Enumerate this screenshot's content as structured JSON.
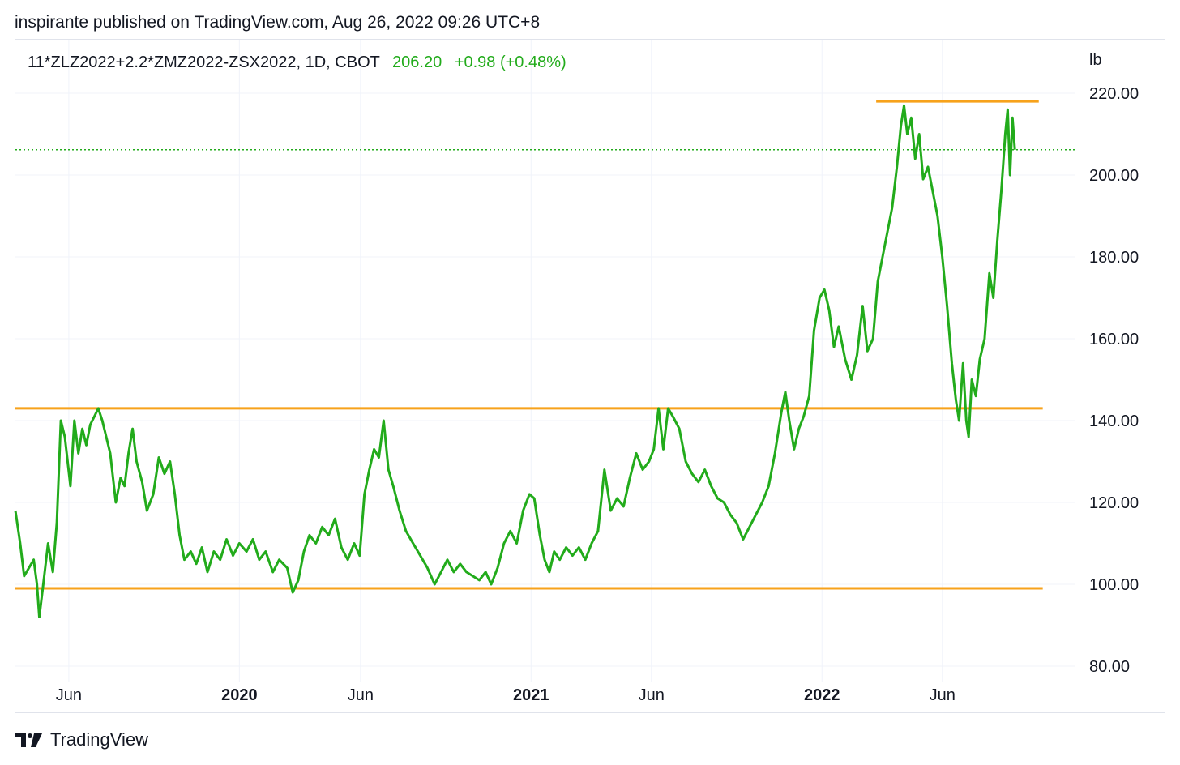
{
  "header": {
    "publisher_text": "inspirante published on TradingView.com, Aug 26, 2022 09:26 UTC+8"
  },
  "legend": {
    "symbol": "11*ZLZ2022+2.2*ZMZ2022-ZSX2022, 1D, CBOT",
    "last": "206.20",
    "change": "+0.98 (+0.48%)",
    "color": "#22ab1b"
  },
  "footer": {
    "brand": "TradingView",
    "logo_icon": "tradingview-logo-icon"
  },
  "chart_data": {
    "type": "line",
    "unit_label": "lb",
    "ylim": [
      80,
      220
    ],
    "yticks": [
      "220.00",
      "200.00",
      "180.00",
      "160.00",
      "140.00",
      "120.00",
      "100.00",
      "80.00"
    ],
    "xlim": [
      "2019-03-26",
      "2022-11-14"
    ],
    "xticks": [
      {
        "label": "Jun",
        "date": "2019-06-01",
        "bold": false
      },
      {
        "label": "2020",
        "date": "2020-01-01",
        "bold": true
      },
      {
        "label": "Jun",
        "date": "2020-06-01",
        "bold": false
      },
      {
        "label": "2021",
        "date": "2021-01-01",
        "bold": true
      },
      {
        "label": "Jun",
        "date": "2021-06-01",
        "bold": false
      },
      {
        "label": "2022",
        "date": "2022-01-01",
        "bold": true
      },
      {
        "label": "Jun",
        "date": "2022-06-01",
        "bold": false
      }
    ],
    "grid": true,
    "line_color": "#22ab1b",
    "last_price_line": 206.2,
    "horizontal_lines": [
      {
        "value": 218.0,
        "from": "2022-03-10",
        "to": "2022-09-30",
        "color": "#f7a21b"
      },
      {
        "value": 143.0,
        "from": "2019-03-26",
        "to": "2022-10-05",
        "color": "#f7a21b"
      },
      {
        "value": 99.0,
        "from": "2019-03-26",
        "to": "2022-10-05",
        "color": "#f7a21b"
      }
    ],
    "series": [
      {
        "values": [
          [
            "2019-03-26",
            118
          ],
          [
            "2019-04-01",
            110
          ],
          [
            "2019-04-06",
            102
          ],
          [
            "2019-04-12",
            104
          ],
          [
            "2019-04-18",
            106
          ],
          [
            "2019-04-22",
            100
          ],
          [
            "2019-04-25",
            92
          ],
          [
            "2019-04-30",
            100
          ],
          [
            "2019-05-06",
            110
          ],
          [
            "2019-05-12",
            103
          ],
          [
            "2019-05-17",
            115
          ],
          [
            "2019-05-22",
            140
          ],
          [
            "2019-05-27",
            136
          ],
          [
            "2019-06-03",
            124
          ],
          [
            "2019-06-08",
            140
          ],
          [
            "2019-06-13",
            132
          ],
          [
            "2019-06-18",
            138
          ],
          [
            "2019-06-23",
            134
          ],
          [
            "2019-06-28",
            139
          ],
          [
            "2019-07-03",
            141
          ],
          [
            "2019-07-08",
            143
          ],
          [
            "2019-07-13",
            140
          ],
          [
            "2019-07-18",
            136
          ],
          [
            "2019-07-23",
            132
          ],
          [
            "2019-07-30",
            120
          ],
          [
            "2019-08-05",
            126
          ],
          [
            "2019-08-10",
            124
          ],
          [
            "2019-08-15",
            132
          ],
          [
            "2019-08-20",
            138
          ],
          [
            "2019-08-25",
            130
          ],
          [
            "2019-09-01",
            125
          ],
          [
            "2019-09-07",
            118
          ],
          [
            "2019-09-15",
            122
          ],
          [
            "2019-09-22",
            131
          ],
          [
            "2019-09-29",
            127
          ],
          [
            "2019-10-06",
            130
          ],
          [
            "2019-10-12",
            122
          ],
          [
            "2019-10-18",
            112
          ],
          [
            "2019-10-24",
            106
          ],
          [
            "2019-11-01",
            108
          ],
          [
            "2019-11-08",
            105
          ],
          [
            "2019-11-15",
            109
          ],
          [
            "2019-11-22",
            103
          ],
          [
            "2019-11-30",
            108
          ],
          [
            "2019-12-08",
            106
          ],
          [
            "2019-12-16",
            111
          ],
          [
            "2019-12-24",
            107
          ],
          [
            "2020-01-01",
            110
          ],
          [
            "2020-01-10",
            108
          ],
          [
            "2020-01-18",
            111
          ],
          [
            "2020-01-26",
            106
          ],
          [
            "2020-02-03",
            108
          ],
          [
            "2020-02-12",
            103
          ],
          [
            "2020-02-20",
            106
          ],
          [
            "2020-03-01",
            104
          ],
          [
            "2020-03-08",
            98
          ],
          [
            "2020-03-15",
            101
          ],
          [
            "2020-03-22",
            108
          ],
          [
            "2020-03-29",
            112
          ],
          [
            "2020-04-06",
            110
          ],
          [
            "2020-04-14",
            114
          ],
          [
            "2020-04-22",
            112
          ],
          [
            "2020-04-30",
            116
          ],
          [
            "2020-05-08",
            109
          ],
          [
            "2020-05-16",
            106
          ],
          [
            "2020-05-24",
            110
          ],
          [
            "2020-05-31",
            107
          ],
          [
            "2020-06-06",
            122
          ],
          [
            "2020-06-12",
            128
          ],
          [
            "2020-06-18",
            133
          ],
          [
            "2020-06-24",
            131
          ],
          [
            "2020-06-30",
            140
          ],
          [
            "2020-07-06",
            128
          ],
          [
            "2020-07-12",
            124
          ],
          [
            "2020-07-20",
            118
          ],
          [
            "2020-07-28",
            113
          ],
          [
            "2020-08-06",
            110
          ],
          [
            "2020-08-15",
            107
          ],
          [
            "2020-08-24",
            104
          ],
          [
            "2020-09-02",
            100
          ],
          [
            "2020-09-10",
            103
          ],
          [
            "2020-09-18",
            106
          ],
          [
            "2020-09-26",
            103
          ],
          [
            "2020-10-04",
            105
          ],
          [
            "2020-10-12",
            103
          ],
          [
            "2020-10-20",
            102
          ],
          [
            "2020-10-28",
            101
          ],
          [
            "2020-11-05",
            103
          ],
          [
            "2020-11-12",
            100
          ],
          [
            "2020-11-20",
            104
          ],
          [
            "2020-11-28",
            110
          ],
          [
            "2020-12-06",
            113
          ],
          [
            "2020-12-14",
            110
          ],
          [
            "2020-12-22",
            118
          ],
          [
            "2020-12-30",
            122
          ],
          [
            "2021-01-05",
            121
          ],
          [
            "2021-01-12",
            112
          ],
          [
            "2021-01-18",
            106
          ],
          [
            "2021-01-24",
            103
          ],
          [
            "2021-01-30",
            108
          ],
          [
            "2021-02-06",
            106
          ],
          [
            "2021-02-14",
            109
          ],
          [
            "2021-02-22",
            107
          ],
          [
            "2021-03-02",
            109
          ],
          [
            "2021-03-10",
            106
          ],
          [
            "2021-03-18",
            110
          ],
          [
            "2021-03-26",
            113
          ],
          [
            "2021-04-03",
            128
          ],
          [
            "2021-04-11",
            118
          ],
          [
            "2021-04-19",
            121
          ],
          [
            "2021-04-27",
            119
          ],
          [
            "2021-05-05",
            126
          ],
          [
            "2021-05-13",
            132
          ],
          [
            "2021-05-21",
            128
          ],
          [
            "2021-05-29",
            130
          ],
          [
            "2021-06-04",
            133
          ],
          [
            "2021-06-10",
            143
          ],
          [
            "2021-06-16",
            133
          ],
          [
            "2021-06-22",
            143
          ],
          [
            "2021-06-28",
            141
          ],
          [
            "2021-07-06",
            138
          ],
          [
            "2021-07-14",
            130
          ],
          [
            "2021-07-22",
            127
          ],
          [
            "2021-07-30",
            125
          ],
          [
            "2021-08-07",
            128
          ],
          [
            "2021-08-15",
            124
          ],
          [
            "2021-08-23",
            121
          ],
          [
            "2021-08-31",
            120
          ],
          [
            "2021-09-08",
            117
          ],
          [
            "2021-09-16",
            115
          ],
          [
            "2021-09-24",
            111
          ],
          [
            "2021-10-02",
            114
          ],
          [
            "2021-10-10",
            117
          ],
          [
            "2021-10-18",
            120
          ],
          [
            "2021-10-26",
            124
          ],
          [
            "2021-11-03",
            132
          ],
          [
            "2021-11-11",
            142
          ],
          [
            "2021-11-16",
            147
          ],
          [
            "2021-11-21",
            140
          ],
          [
            "2021-11-27",
            133
          ],
          [
            "2021-12-03",
            138
          ],
          [
            "2021-12-09",
            141
          ],
          [
            "2021-12-16",
            146
          ],
          [
            "2021-12-22",
            162
          ],
          [
            "2021-12-29",
            170
          ],
          [
            "2022-01-04",
            172
          ],
          [
            "2022-01-10",
            167
          ],
          [
            "2022-01-16",
            158
          ],
          [
            "2022-01-22",
            163
          ],
          [
            "2022-01-30",
            155
          ],
          [
            "2022-02-07",
            150
          ],
          [
            "2022-02-14",
            156
          ],
          [
            "2022-02-21",
            168
          ],
          [
            "2022-02-27",
            157
          ],
          [
            "2022-03-06",
            160
          ],
          [
            "2022-03-12",
            174
          ],
          [
            "2022-03-18",
            180
          ],
          [
            "2022-03-24",
            186
          ],
          [
            "2022-03-30",
            192
          ],
          [
            "2022-04-05",
            202
          ],
          [
            "2022-04-10",
            212
          ],
          [
            "2022-04-14",
            217
          ],
          [
            "2022-04-18",
            210
          ],
          [
            "2022-04-23",
            214
          ],
          [
            "2022-04-28",
            204
          ],
          [
            "2022-05-03",
            210
          ],
          [
            "2022-05-08",
            199
          ],
          [
            "2022-05-14",
            202
          ],
          [
            "2022-05-20",
            196
          ],
          [
            "2022-05-26",
            190
          ],
          [
            "2022-06-01",
            180
          ],
          [
            "2022-06-07",
            168
          ],
          [
            "2022-06-13",
            154
          ],
          [
            "2022-06-18",
            145
          ],
          [
            "2022-06-22",
            140
          ],
          [
            "2022-06-27",
            154
          ],
          [
            "2022-07-01",
            140
          ],
          [
            "2022-07-04",
            136
          ],
          [
            "2022-07-08",
            150
          ],
          [
            "2022-07-13",
            146
          ],
          [
            "2022-07-18",
            155
          ],
          [
            "2022-07-24",
            160
          ],
          [
            "2022-07-30",
            176
          ],
          [
            "2022-08-04",
            170
          ],
          [
            "2022-08-09",
            184
          ],
          [
            "2022-08-14",
            196
          ],
          [
            "2022-08-19",
            210
          ],
          [
            "2022-08-22",
            216
          ],
          [
            "2022-08-25",
            200
          ],
          [
            "2022-08-28",
            214
          ],
          [
            "2022-08-31",
            206.2
          ]
        ]
      }
    ]
  }
}
